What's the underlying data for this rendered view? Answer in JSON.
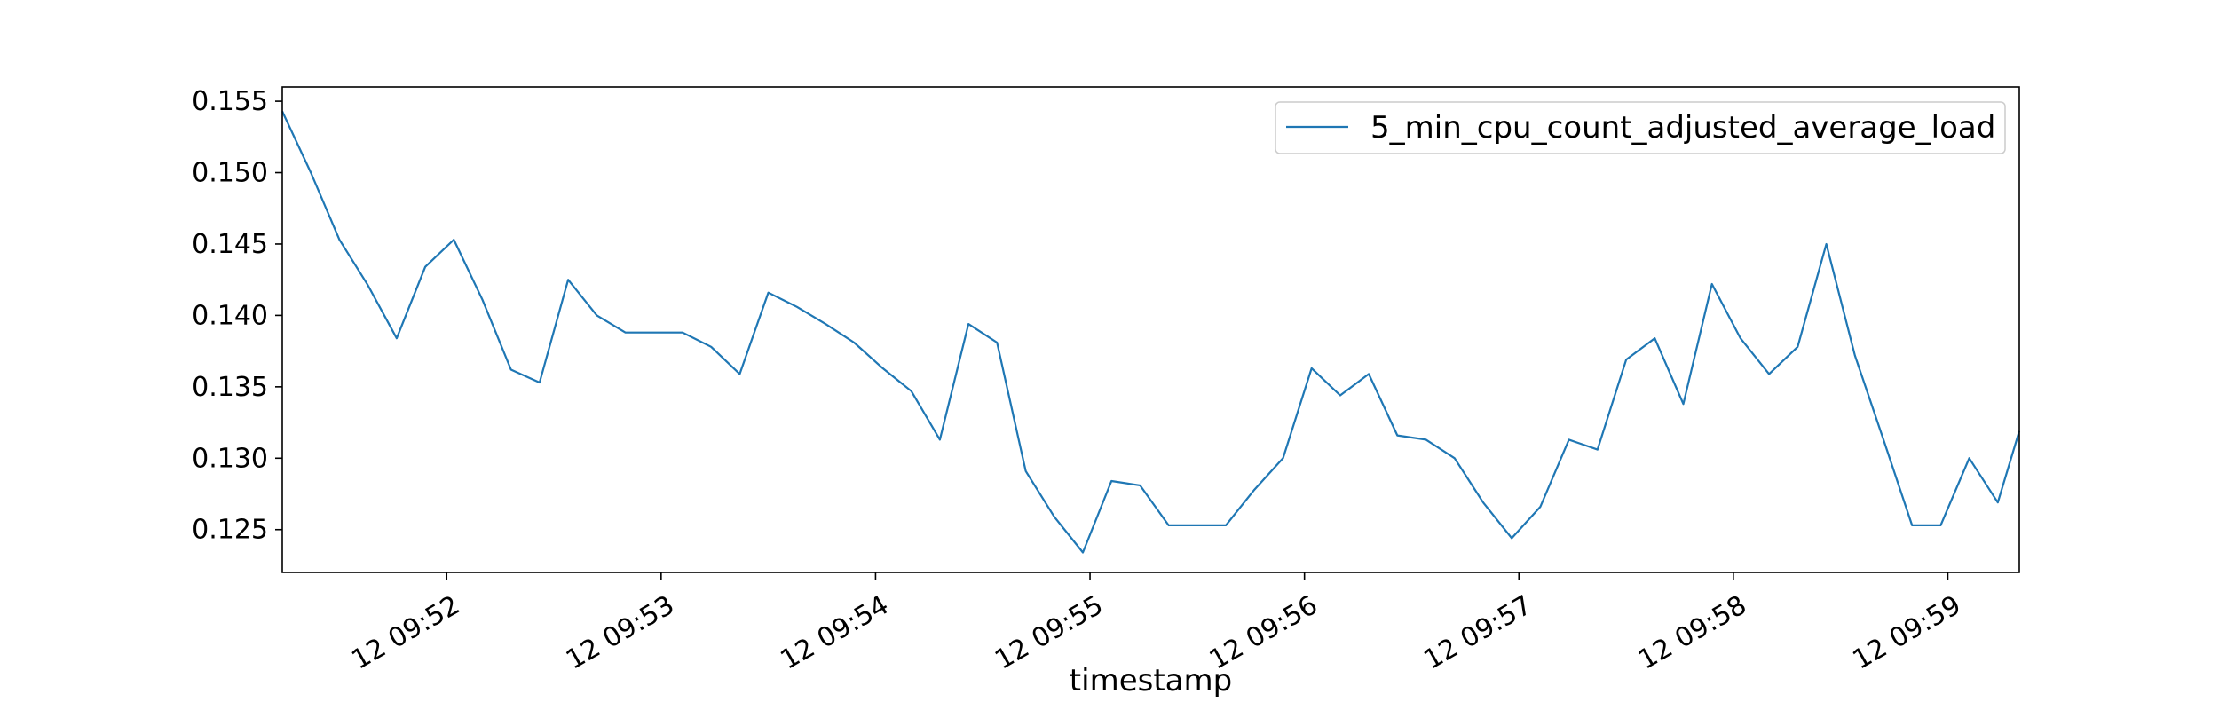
{
  "chart_data": {
    "type": "line",
    "title": "",
    "xlabel": "timestamp",
    "ylabel": "",
    "ylim": [
      0.122,
      0.156
    ],
    "xlim": [
      "12 09:51:14",
      "12 09:59:20"
    ],
    "grid": false,
    "legend_placement": "top-right",
    "colors": {
      "line": "#1f77b4",
      "axes": "#000000",
      "background": "#ffffff"
    },
    "x_ticks": [
      {
        "time": "12 09:52:00",
        "label": "12 09:52"
      },
      {
        "time": "12 09:53:00",
        "label": "12 09:53"
      },
      {
        "time": "12 09:54:00",
        "label": "12 09:54"
      },
      {
        "time": "12 09:55:00",
        "label": "12 09:55"
      },
      {
        "time": "12 09:56:00",
        "label": "12 09:56"
      },
      {
        "time": "12 09:57:00",
        "label": "12 09:57"
      },
      {
        "time": "12 09:58:00",
        "label": "12 09:58"
      },
      {
        "time": "12 09:59:00",
        "label": "12 09:59"
      }
    ],
    "y_ticks": [
      {
        "value": 0.125,
        "label": "0.125"
      },
      {
        "value": 0.13,
        "label": "0.130"
      },
      {
        "value": 0.135,
        "label": "0.135"
      },
      {
        "value": 0.14,
        "label": "0.140"
      },
      {
        "value": 0.145,
        "label": "0.145"
      },
      {
        "value": 0.15,
        "label": "0.150"
      },
      {
        "value": 0.155,
        "label": "0.155"
      }
    ],
    "x": [
      "12 09:51:14",
      "12 09:51:22",
      "12 09:51:30",
      "12 09:51:38",
      "12 09:51:46",
      "12 09:51:54",
      "12 09:52:02",
      "12 09:52:10",
      "12 09:52:18",
      "12 09:52:26",
      "12 09:52:34",
      "12 09:52:42",
      "12 09:52:50",
      "12 09:52:58",
      "12 09:53:06",
      "12 09:53:14",
      "12 09:53:22",
      "12 09:53:30",
      "12 09:53:38",
      "12 09:53:46",
      "12 09:53:54",
      "12 09:54:02",
      "12 09:54:10",
      "12 09:54:18",
      "12 09:54:26",
      "12 09:54:34",
      "12 09:54:42",
      "12 09:54:50",
      "12 09:54:58",
      "12 09:55:06",
      "12 09:55:14",
      "12 09:55:22",
      "12 09:55:30",
      "12 09:55:38",
      "12 09:55:46",
      "12 09:55:54",
      "12 09:56:02",
      "12 09:56:10",
      "12 09:56:18",
      "12 09:56:26",
      "12 09:56:34",
      "12 09:56:42",
      "12 09:56:50",
      "12 09:56:58",
      "12 09:57:06",
      "12 09:57:14",
      "12 09:57:22",
      "12 09:57:30",
      "12 09:57:38",
      "12 09:57:46",
      "12 09:57:54",
      "12 09:58:02",
      "12 09:58:10",
      "12 09:58:18",
      "12 09:58:26",
      "12 09:58:34",
      "12 09:58:42",
      "12 09:58:50",
      "12 09:58:58",
      "12 09:59:06",
      "12 09:59:14",
      "12 09:59:20"
    ],
    "series": [
      {
        "name": "5_min_cpu_count_adjusted_average_load",
        "values": [
          0.1543,
          0.15,
          0.1453,
          0.1421,
          0.1384,
          0.1434,
          0.1453,
          0.1411,
          0.1362,
          0.1353,
          0.1425,
          0.14,
          0.1388,
          0.1388,
          0.1388,
          0.1378,
          0.1359,
          0.1416,
          0.1406,
          0.1394,
          0.1381,
          0.1363,
          0.1347,
          0.1313,
          0.1394,
          0.1381,
          0.1291,
          0.1259,
          0.1234,
          0.1284,
          0.1281,
          0.1253,
          0.1253,
          0.1253,
          0.1278,
          0.13,
          0.1363,
          0.1344,
          0.1359,
          0.1316,
          0.1313,
          0.13,
          0.1269,
          0.1244,
          0.1266,
          0.1313,
          0.1306,
          0.1369,
          0.1384,
          0.1338,
          0.1422,
          0.1384,
          0.1359,
          0.1378,
          0.145,
          0.1372,
          0.1313,
          0.1253,
          0.1253,
          0.13,
          0.1269,
          0.1319
        ]
      }
    ]
  }
}
